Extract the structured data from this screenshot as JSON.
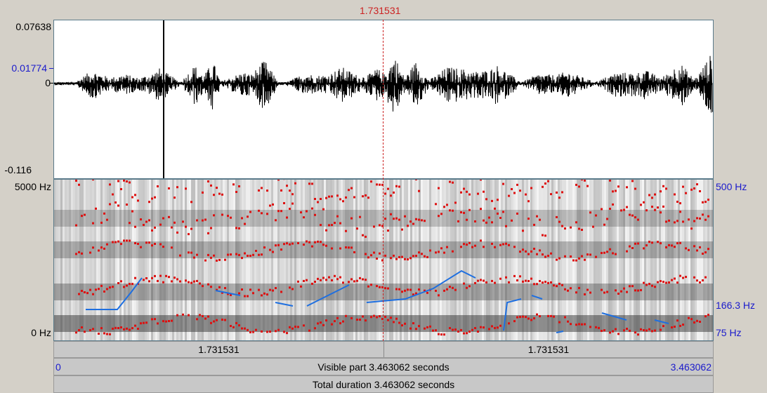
{
  "cursor": {
    "time_label": "1.731531",
    "fraction": 0.5
  },
  "waveform": {
    "y_max": "0.07638",
    "y_cursor": "0.01774",
    "y_zero": "0",
    "y_min": "-0.116"
  },
  "spectrogram": {
    "freq_top": "5000 Hz",
    "freq_bottom": "0 Hz",
    "pitch_top": "500 Hz",
    "pitch_mid": "166.3 Hz",
    "pitch_bottom": "75 Hz"
  },
  "selection_bar": {
    "left": "1.731531",
    "right": "1.731531"
  },
  "visible_bar": {
    "start": "0",
    "label": "Visible part 3.463062 seconds",
    "end": "3.463062"
  },
  "total_bar": {
    "label": "Total duration 3.463062 seconds"
  },
  "colors": {
    "formant": "#dd1111",
    "pitch": "#1e6fe0",
    "cursor": "#cc2222",
    "axis_blue": "#1a1acc"
  }
}
